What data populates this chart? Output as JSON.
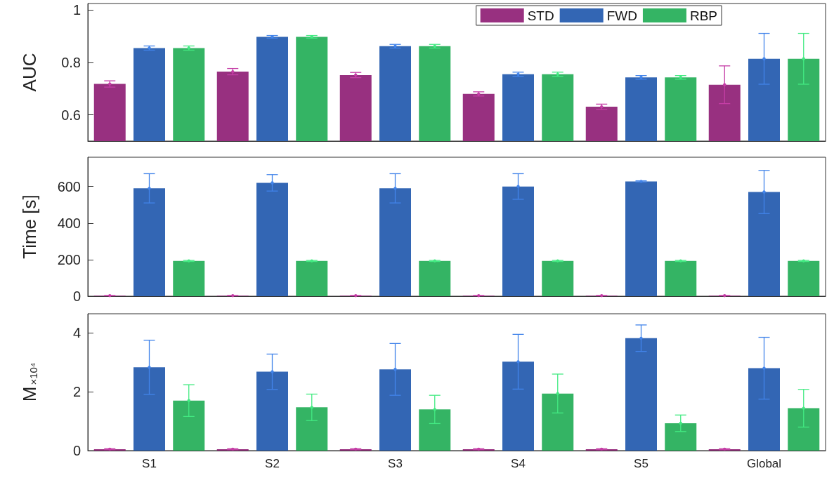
{
  "chart_data": [
    {
      "type": "bar",
      "ylabel": "AUC",
      "categories": [
        null,
        null,
        null,
        null,
        null,
        null
      ],
      "ylim": [
        0.5,
        1.025
      ],
      "yticks": [
        0.6,
        0.8,
        1
      ],
      "tick_labels": "y",
      "legend": "top right",
      "grid": false,
      "series": [
        {
          "name": "STD",
          "color": "#983080",
          "values": [
            0.718,
            0.765,
            0.752,
            0.68,
            0.631,
            0.715
          ],
          "errors": [
            0.012,
            0.012,
            0.01,
            0.008,
            0.01,
            0.072
          ]
        },
        {
          "name": "FWD",
          "color": "#3366b4",
          "values": [
            0.855,
            0.898,
            0.862,
            0.755,
            0.743,
            0.814
          ],
          "errors": [
            0.008,
            0.005,
            0.007,
            0.008,
            0.007,
            0.097
          ]
        },
        {
          "name": "RBP",
          "color": "#34b464",
          "values": [
            0.855,
            0.898,
            0.862,
            0.755,
            0.743,
            0.814
          ],
          "errors": [
            0.008,
            0.005,
            0.007,
            0.008,
            0.007,
            0.097
          ]
        }
      ]
    },
    {
      "type": "bar",
      "ylabel": "Time [s]",
      "categories": [
        null,
        null,
        null,
        null,
        null,
        null
      ],
      "ylim": [
        0,
        760
      ],
      "yticks": [
        0,
        200,
        400,
        600
      ],
      "tick_labels": "y",
      "grid": false,
      "series": [
        {
          "color": "#983080",
          "values": [
            3,
            3,
            3,
            3,
            3,
            3
          ],
          "errors": [
            1,
            1,
            1,
            1,
            1,
            1
          ]
        },
        {
          "color": "#3366b4",
          "values": [
            590,
            620,
            590,
            600,
            628,
            570
          ],
          "errors": [
            80,
            45,
            80,
            70,
            3,
            118
          ]
        },
        {
          "color": "#34b464",
          "values": [
            193,
            193,
            193,
            193,
            193,
            193
          ],
          "errors": [
            3,
            3,
            3,
            3,
            3,
            3
          ]
        }
      ]
    },
    {
      "type": "bar",
      "ylabel": "M$_{×10⁴}$",
      "categories": [
        "S1",
        "S2",
        "S3",
        "S4",
        "S5",
        "Global"
      ],
      "ylim": [
        0,
        4.65
      ],
      "yticks": [
        0,
        2,
        4
      ],
      "grid": false,
      "series": [
        {
          "color": "#983080",
          "values": [
            0.05,
            0.05,
            0.05,
            0.05,
            0.05,
            0.05
          ],
          "errors": [
            0.02,
            0.02,
            0.02,
            0.02,
            0.02,
            0.02
          ]
        },
        {
          "color": "#3366b4",
          "values": [
            2.83,
            2.68,
            2.76,
            3.02,
            3.82,
            2.8
          ],
          "errors": [
            0.92,
            0.6,
            0.88,
            0.93,
            0.45,
            1.05
          ]
        },
        {
          "color": "#34b464",
          "values": [
            1.7,
            1.47,
            1.4,
            1.94,
            0.93,
            1.44
          ],
          "errors": [
            0.54,
            0.45,
            0.48,
            0.66,
            0.28,
            0.64
          ]
        }
      ]
    }
  ]
}
